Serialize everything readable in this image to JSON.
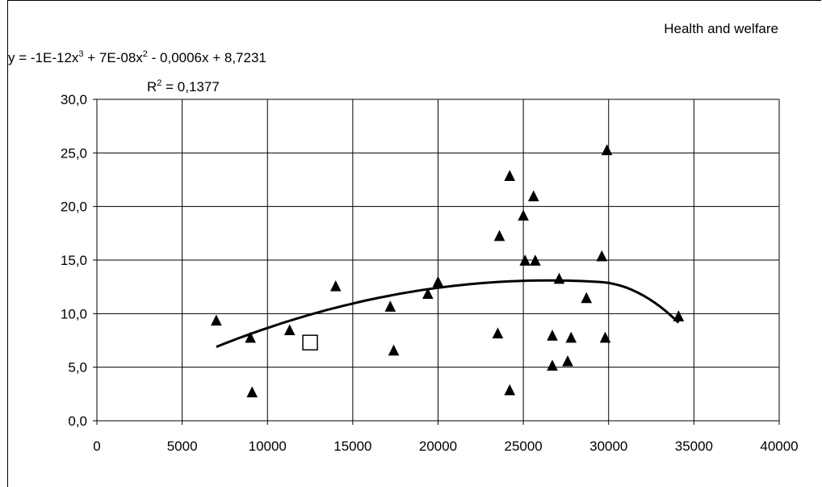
{
  "chart_data": {
    "type": "scatter",
    "legend_text": "Health and welfare",
    "equation": {
      "prefix": "y = -1E-12x",
      "exp3": "3",
      "mid": " + 7E-08x",
      "exp2": "2",
      "suffix": " - 0,0006x + 8,7231"
    },
    "r_squared": {
      "prefix": "R",
      "exp": "2",
      "value": " = 0,1377"
    },
    "xlim": [
      0,
      40000
    ],
    "ylim": [
      0,
      30
    ],
    "x_ticks": [
      0,
      5000,
      10000,
      15000,
      20000,
      25000,
      30000,
      35000,
      40000
    ],
    "x_tick_labels": [
      "0",
      "5000",
      "10000",
      "15000",
      "20000",
      "25000",
      "30000",
      "35000",
      "40000"
    ],
    "y_ticks": [
      0,
      5,
      10,
      15,
      20,
      25,
      30
    ],
    "y_tick_labels": [
      "0,0",
      "5,0",
      "10,0",
      "15,0",
      "20,0",
      "25,0",
      "30,0"
    ],
    "grid": true,
    "series": [
      {
        "marker": "triangle",
        "color": "#000000",
        "points": [
          [
            7000,
            9.3
          ],
          [
            9000,
            7.7
          ],
          [
            9100,
            2.6
          ],
          [
            11300,
            8.4
          ],
          [
            14000,
            12.5
          ],
          [
            17200,
            10.6
          ],
          [
            17400,
            6.5
          ],
          [
            19400,
            11.8
          ],
          [
            20000,
            12.9
          ],
          [
            23500,
            8.1
          ],
          [
            23600,
            17.2
          ],
          [
            24200,
            22.8
          ],
          [
            24200,
            2.8
          ],
          [
            25000,
            19.1
          ],
          [
            25100,
            14.9
          ],
          [
            25600,
            20.9
          ],
          [
            25700,
            14.9
          ],
          [
            26700,
            7.9
          ],
          [
            26700,
            5.1
          ],
          [
            27100,
            13.2
          ],
          [
            27600,
            5.5
          ],
          [
            27800,
            7.7
          ],
          [
            28700,
            11.4
          ],
          [
            29600,
            15.3
          ],
          [
            29800,
            7.7
          ],
          [
            29900,
            25.2
          ],
          [
            34100,
            9.7
          ]
        ]
      },
      {
        "marker": "square",
        "color": "#ffffff",
        "points": [
          [
            12500,
            7.3
          ]
        ]
      }
    ],
    "trendline": {
      "type": "poly3",
      "x_range": [
        7000,
        34100
      ]
    }
  }
}
